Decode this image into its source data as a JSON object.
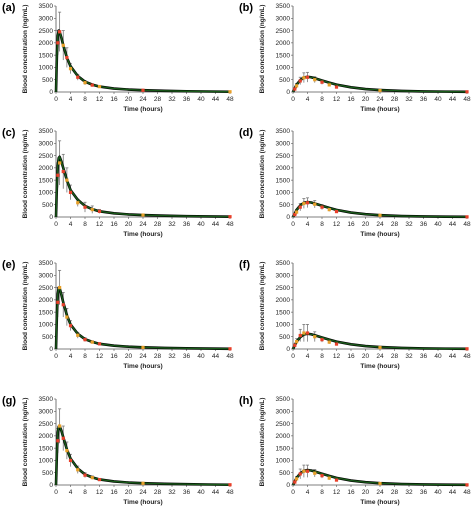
{
  "chart_data": [
    {
      "panel": "(a)",
      "type": "line",
      "xlabel": "Time (hours)",
      "ylabel": "Blood concentration (ng/mL)",
      "xlim": [
        0,
        48
      ],
      "ylim": [
        0,
        3500
      ],
      "xticks": [
        0,
        4,
        8,
        12,
        16,
        20,
        24,
        28,
        32,
        36,
        40,
        44,
        48
      ],
      "yticks": [
        0,
        500,
        1000,
        1500,
        2000,
        2500,
        3000,
        3500
      ],
      "fit_curve": {
        "color": "#1a5c1a",
        "x": [
          0,
          0.25,
          0.5,
          0.75,
          1,
          1.5,
          2,
          3,
          4,
          6,
          8,
          10,
          12,
          16,
          20,
          24,
          30,
          36,
          42,
          48
        ],
        "y": [
          0,
          1500,
          2300,
          2500,
          2450,
          2200,
          1900,
          1400,
          1050,
          650,
          420,
          300,
          220,
          140,
          100,
          75,
          50,
          30,
          20,
          10
        ]
      },
      "observed": [
        {
          "x": 0.5,
          "y": 2000,
          "err": 500,
          "color": "#e8402a"
        },
        {
          "x": 1,
          "y": 2450,
          "err": 800,
          "color": "#e8402a"
        },
        {
          "x": 2,
          "y": 1900,
          "err": 600,
          "color": "#e8a02a"
        },
        {
          "x": 3,
          "y": 1400,
          "err": 400,
          "color": "#e8402a"
        },
        {
          "x": 4,
          "y": 950,
          "err": 200,
          "color": "#e8a02a"
        },
        {
          "x": 6,
          "y": 600,
          "err": 120,
          "color": "#e8402a"
        },
        {
          "x": 8,
          "y": 380,
          "err": 90,
          "color": "#e8a02a"
        },
        {
          "x": 10,
          "y": 280,
          "err": 60,
          "color": "#e8402a"
        },
        {
          "x": 12,
          "y": 220,
          "err": 50,
          "color": "#e8a02a"
        },
        {
          "x": 24,
          "y": 70,
          "err": 20,
          "color": "#e8402a"
        },
        {
          "x": 48,
          "y": 10,
          "err": 5,
          "color": "#e8a02a"
        }
      ]
    },
    {
      "panel": "(b)",
      "type": "line",
      "xlabel": "Time (hours)",
      "ylabel": "Blood concentration (ng/mL)",
      "xlim": [
        0,
        48
      ],
      "ylim": [
        0,
        3500
      ],
      "xticks": [
        0,
        4,
        8,
        12,
        16,
        20,
        24,
        28,
        32,
        36,
        40,
        44,
        48
      ],
      "yticks": [
        0,
        500,
        1000,
        1500,
        2000,
        2500,
        3000,
        3500
      ],
      "fit_curve": {
        "color": "#1a5c1a",
        "x": [
          0,
          0.5,
          1,
          2,
          3,
          4,
          5,
          6,
          8,
          10,
          12,
          16,
          20,
          24,
          30,
          36,
          42,
          48
        ],
        "y": [
          0,
          150,
          300,
          480,
          590,
          620,
          600,
          560,
          470,
          380,
          300,
          190,
          120,
          80,
          45,
          25,
          15,
          8
        ]
      },
      "observed": [
        {
          "x": 0.5,
          "y": 120,
          "err": 60,
          "color": "#e8402a"
        },
        {
          "x": 1,
          "y": 250,
          "err": 100,
          "color": "#e8a02a"
        },
        {
          "x": 2,
          "y": 450,
          "err": 150,
          "color": "#e8402a"
        },
        {
          "x": 3,
          "y": 580,
          "err": 200,
          "color": "#e8a02a"
        },
        {
          "x": 4,
          "y": 600,
          "err": 200,
          "color": "#e8402a"
        },
        {
          "x": 6,
          "y": 500,
          "err": 120,
          "color": "#e8a02a"
        },
        {
          "x": 8,
          "y": 400,
          "err": 90,
          "color": "#e8402a"
        },
        {
          "x": 10,
          "y": 290,
          "err": 60,
          "color": "#e8a02a"
        },
        {
          "x": 12,
          "y": 200,
          "err": 50,
          "color": "#e8402a"
        },
        {
          "x": 24,
          "y": 60,
          "err": 20,
          "color": "#e8a02a"
        },
        {
          "x": 48,
          "y": 8,
          "err": 5,
          "color": "#e8402a"
        }
      ]
    },
    {
      "panel": "(c)",
      "type": "line",
      "xlabel": "Time (hours)",
      "ylabel": "Blood concentration (ng/mL)",
      "xlim": [
        0,
        48
      ],
      "ylim": [
        0,
        3500
      ],
      "xticks": [
        0,
        4,
        8,
        12,
        16,
        20,
        24,
        28,
        32,
        36,
        40,
        44,
        48
      ],
      "yticks": [
        0,
        500,
        1000,
        1500,
        2000,
        2500,
        3000,
        3500
      ],
      "fit_curve": {
        "color": "#1a5c1a",
        "x": [
          0,
          0.25,
          0.5,
          0.75,
          1,
          1.5,
          2,
          3,
          4,
          6,
          8,
          10,
          12,
          16,
          20,
          24,
          30,
          36,
          42,
          48
        ],
        "y": [
          0,
          1300,
          2100,
          2400,
          2450,
          2250,
          2000,
          1500,
          1100,
          700,
          450,
          320,
          230,
          150,
          105,
          80,
          55,
          35,
          22,
          12
        ]
      },
      "observed": [
        {
          "x": 0.5,
          "y": 1700,
          "err": 500,
          "color": "#e8402a"
        },
        {
          "x": 1,
          "y": 2200,
          "err": 900,
          "color": "#e8a02a"
        },
        {
          "x": 2,
          "y": 1850,
          "err": 700,
          "color": "#e8402a"
        },
        {
          "x": 3,
          "y": 1500,
          "err": 500,
          "color": "#e8a02a"
        },
        {
          "x": 4,
          "y": 1000,
          "err": 300,
          "color": "#e8402a"
        },
        {
          "x": 6,
          "y": 580,
          "err": 150,
          "color": "#e8a02a"
        },
        {
          "x": 8,
          "y": 400,
          "err": 200,
          "color": "#e8402a"
        },
        {
          "x": 10,
          "y": 300,
          "err": 150,
          "color": "#e8a02a"
        },
        {
          "x": 12,
          "y": 230,
          "err": 80,
          "color": "#e8402a"
        },
        {
          "x": 24,
          "y": 80,
          "err": 20,
          "color": "#e8a02a"
        },
        {
          "x": 48,
          "y": 12,
          "err": 5,
          "color": "#e8402a"
        }
      ]
    },
    {
      "panel": "(d)",
      "type": "line",
      "xlabel": "Time (hours)",
      "ylabel": "Blood concentration (ng/mL)",
      "xlim": [
        0,
        48
      ],
      "ylim": [
        0,
        3500
      ],
      "xticks": [
        0,
        4,
        8,
        12,
        16,
        20,
        24,
        28,
        32,
        36,
        40,
        44,
        48
      ],
      "yticks": [
        0,
        500,
        1000,
        1500,
        2000,
        2500,
        3000,
        3500
      ],
      "fit_curve": {
        "color": "#1a5c1a",
        "x": [
          0,
          0.5,
          1,
          2,
          3,
          4,
          5,
          6,
          8,
          10,
          12,
          16,
          20,
          24,
          30,
          36,
          42,
          48
        ],
        "y": [
          0,
          140,
          290,
          470,
          580,
          610,
          590,
          550,
          460,
          370,
          290,
          180,
          115,
          75,
          40,
          22,
          12,
          6
        ]
      },
      "observed": [
        {
          "x": 0.5,
          "y": 100,
          "err": 50,
          "color": "#e8402a"
        },
        {
          "x": 1,
          "y": 200,
          "err": 100,
          "color": "#e8a02a"
        },
        {
          "x": 2,
          "y": 400,
          "err": 150,
          "color": "#e8402a"
        },
        {
          "x": 3,
          "y": 550,
          "err": 200,
          "color": "#e8a02a"
        },
        {
          "x": 4,
          "y": 580,
          "err": 200,
          "color": "#e8402a"
        },
        {
          "x": 6,
          "y": 520,
          "err": 150,
          "color": "#e8a02a"
        },
        {
          "x": 8,
          "y": 400,
          "err": 100,
          "color": "#e8402a"
        },
        {
          "x": 10,
          "y": 300,
          "err": 70,
          "color": "#e8a02a"
        },
        {
          "x": 12,
          "y": 220,
          "err": 50,
          "color": "#e8402a"
        },
        {
          "x": 24,
          "y": 70,
          "err": 20,
          "color": "#e8a02a"
        },
        {
          "x": 48,
          "y": 6,
          "err": 4,
          "color": "#e8402a"
        }
      ]
    },
    {
      "panel": "(e)",
      "type": "line",
      "xlabel": "Time (hours)",
      "ylabel": "Blood concentration (ng/mL)",
      "xlim": [
        0,
        48
      ],
      "ylim": [
        0,
        3500
      ],
      "xticks": [
        0,
        4,
        8,
        12,
        16,
        20,
        24,
        28,
        32,
        36,
        40,
        44,
        48
      ],
      "yticks": [
        0,
        500,
        1000,
        1500,
        2000,
        2500,
        3000,
        3500
      ],
      "fit_curve": {
        "color": "#1a5c1a",
        "x": [
          0,
          0.25,
          0.5,
          0.75,
          1,
          1.5,
          2,
          3,
          4,
          6,
          8,
          10,
          12,
          16,
          20,
          24,
          30,
          36,
          42,
          48
        ],
        "y": [
          0,
          1400,
          2250,
          2500,
          2480,
          2200,
          1900,
          1380,
          1000,
          620,
          400,
          290,
          210,
          135,
          95,
          70,
          45,
          28,
          18,
          9
        ]
      },
      "observed": [
        {
          "x": 0.5,
          "y": 1900,
          "err": 600,
          "color": "#e8402a"
        },
        {
          "x": 1,
          "y": 2500,
          "err": 700,
          "color": "#e8a02a"
        },
        {
          "x": 2,
          "y": 1800,
          "err": 500,
          "color": "#e8402a"
        },
        {
          "x": 3,
          "y": 1300,
          "err": 350,
          "color": "#e8a02a"
        },
        {
          "x": 4,
          "y": 950,
          "err": 200,
          "color": "#e8402a"
        },
        {
          "x": 6,
          "y": 560,
          "err": 120,
          "color": "#e8a02a"
        },
        {
          "x": 8,
          "y": 380,
          "err": 80,
          "color": "#e8402a"
        },
        {
          "x": 10,
          "y": 280,
          "err": 60,
          "color": "#e8a02a"
        },
        {
          "x": 12,
          "y": 210,
          "err": 50,
          "color": "#e8402a"
        },
        {
          "x": 24,
          "y": 65,
          "err": 20,
          "color": "#e8a02a"
        },
        {
          "x": 48,
          "y": 9,
          "err": 4,
          "color": "#e8402a"
        }
      ]
    },
    {
      "panel": "(f)",
      "type": "line",
      "xlabel": "Time (hours)",
      "ylabel": "Blood concentration (ng/mL)",
      "xlim": [
        0,
        48
      ],
      "ylim": [
        0,
        3500
      ],
      "xticks": [
        0,
        4,
        8,
        12,
        16,
        20,
        24,
        28,
        32,
        36,
        40,
        44,
        48
      ],
      "yticks": [
        0,
        500,
        1000,
        1500,
        2000,
        2500,
        3000,
        3500
      ],
      "fit_curve": {
        "color": "#1a5c1a",
        "x": [
          0,
          0.5,
          1,
          2,
          3,
          4,
          5,
          6,
          8,
          10,
          12,
          16,
          20,
          24,
          30,
          36,
          42,
          48
        ],
        "y": [
          0,
          150,
          300,
          480,
          590,
          620,
          600,
          560,
          470,
          380,
          300,
          190,
          120,
          80,
          45,
          25,
          15,
          8
        ]
      },
      "observed": [
        {
          "x": 0.5,
          "y": 150,
          "err": 60,
          "color": "#e8402a"
        },
        {
          "x": 1,
          "y": 300,
          "err": 120,
          "color": "#e8a02a"
        },
        {
          "x": 2,
          "y": 550,
          "err": 250,
          "color": "#e8402a"
        },
        {
          "x": 3,
          "y": 650,
          "err": 350,
          "color": "#e8a02a"
        },
        {
          "x": 4,
          "y": 650,
          "err": 350,
          "color": "#e8402a"
        },
        {
          "x": 6,
          "y": 500,
          "err": 200,
          "color": "#e8a02a"
        },
        {
          "x": 8,
          "y": 380,
          "err": 100,
          "color": "#e8402a"
        },
        {
          "x": 10,
          "y": 280,
          "err": 70,
          "color": "#e8a02a"
        },
        {
          "x": 12,
          "y": 200,
          "err": 50,
          "color": "#e8402a"
        },
        {
          "x": 24,
          "y": 60,
          "err": 20,
          "color": "#e8a02a"
        },
        {
          "x": 48,
          "y": 8,
          "err": 4,
          "color": "#e8402a"
        }
      ]
    },
    {
      "panel": "(g)",
      "type": "line",
      "xlabel": "Time (hours)",
      "ylabel": "Blood concentration (ng/mL)",
      "xlim": [
        0,
        48
      ],
      "ylim": [
        0,
        3500
      ],
      "xticks": [
        0,
        4,
        8,
        12,
        16,
        20,
        24,
        28,
        32,
        36,
        40,
        44,
        48
      ],
      "yticks": [
        0,
        500,
        1000,
        1500,
        2000,
        2500,
        3000,
        3500
      ],
      "fit_curve": {
        "color": "#1a5c1a",
        "x": [
          0,
          0.25,
          0.5,
          0.75,
          1,
          1.5,
          2,
          3,
          4,
          6,
          8,
          10,
          12,
          16,
          20,
          24,
          30,
          36,
          42,
          48
        ],
        "y": [
          0,
          1300,
          2150,
          2380,
          2400,
          2200,
          1950,
          1450,
          1080,
          670,
          430,
          310,
          225,
          145,
          100,
          75,
          50,
          32,
          20,
          10
        ]
      },
      "observed": [
        {
          "x": 0.5,
          "y": 1800,
          "err": 500,
          "color": "#e8402a"
        },
        {
          "x": 1,
          "y": 2400,
          "err": 700,
          "color": "#e8a02a"
        },
        {
          "x": 2,
          "y": 1900,
          "err": 500,
          "color": "#e8402a"
        },
        {
          "x": 3,
          "y": 1400,
          "err": 350,
          "color": "#e8a02a"
        },
        {
          "x": 4,
          "y": 1000,
          "err": 250,
          "color": "#e8402a"
        },
        {
          "x": 6,
          "y": 620,
          "err": 150,
          "color": "#e8a02a"
        },
        {
          "x": 8,
          "y": 400,
          "err": 100,
          "color": "#e8402a"
        },
        {
          "x": 10,
          "y": 300,
          "err": 70,
          "color": "#e8a02a"
        },
        {
          "x": 12,
          "y": 220,
          "err": 50,
          "color": "#e8402a"
        },
        {
          "x": 24,
          "y": 70,
          "err": 20,
          "color": "#e8a02a"
        },
        {
          "x": 48,
          "y": 10,
          "err": 5,
          "color": "#e8402a"
        }
      ]
    },
    {
      "panel": "(h)",
      "type": "line",
      "xlabel": "Time (hours)",
      "ylabel": "Blood concentration (ng/mL)",
      "xlim": [
        0,
        48
      ],
      "ylim": [
        0,
        3500
      ],
      "xticks": [
        0,
        4,
        8,
        12,
        16,
        20,
        24,
        28,
        32,
        36,
        40,
        44,
        48
      ],
      "yticks": [
        0,
        500,
        1000,
        1500,
        2000,
        2500,
        3000,
        3500
      ],
      "fit_curve": {
        "color": "#1a5c1a",
        "x": [
          0,
          0.5,
          1,
          2,
          3,
          4,
          5,
          6,
          8,
          10,
          12,
          16,
          20,
          24,
          30,
          36,
          42,
          48
        ],
        "y": [
          0,
          140,
          290,
          470,
          580,
          610,
          590,
          550,
          460,
          370,
          290,
          180,
          115,
          75,
          40,
          22,
          12,
          6
        ]
      },
      "observed": [
        {
          "x": 0.5,
          "y": 120,
          "err": 60,
          "color": "#e8402a"
        },
        {
          "x": 1,
          "y": 250,
          "err": 100,
          "color": "#e8a02a"
        },
        {
          "x": 2,
          "y": 450,
          "err": 200,
          "color": "#e8402a"
        },
        {
          "x": 3,
          "y": 560,
          "err": 250,
          "color": "#e8a02a"
        },
        {
          "x": 4,
          "y": 560,
          "err": 250,
          "color": "#e8402a"
        },
        {
          "x": 6,
          "y": 480,
          "err": 150,
          "color": "#e8a02a"
        },
        {
          "x": 8,
          "y": 380,
          "err": 100,
          "color": "#e8402a"
        },
        {
          "x": 10,
          "y": 280,
          "err": 70,
          "color": "#e8a02a"
        },
        {
          "x": 12,
          "y": 200,
          "err": 50,
          "color": "#e8402a"
        },
        {
          "x": 24,
          "y": 60,
          "err": 20,
          "color": "#e8a02a"
        },
        {
          "x": 48,
          "y": 6,
          "err": 4,
          "color": "#e8402a"
        }
      ]
    }
  ]
}
